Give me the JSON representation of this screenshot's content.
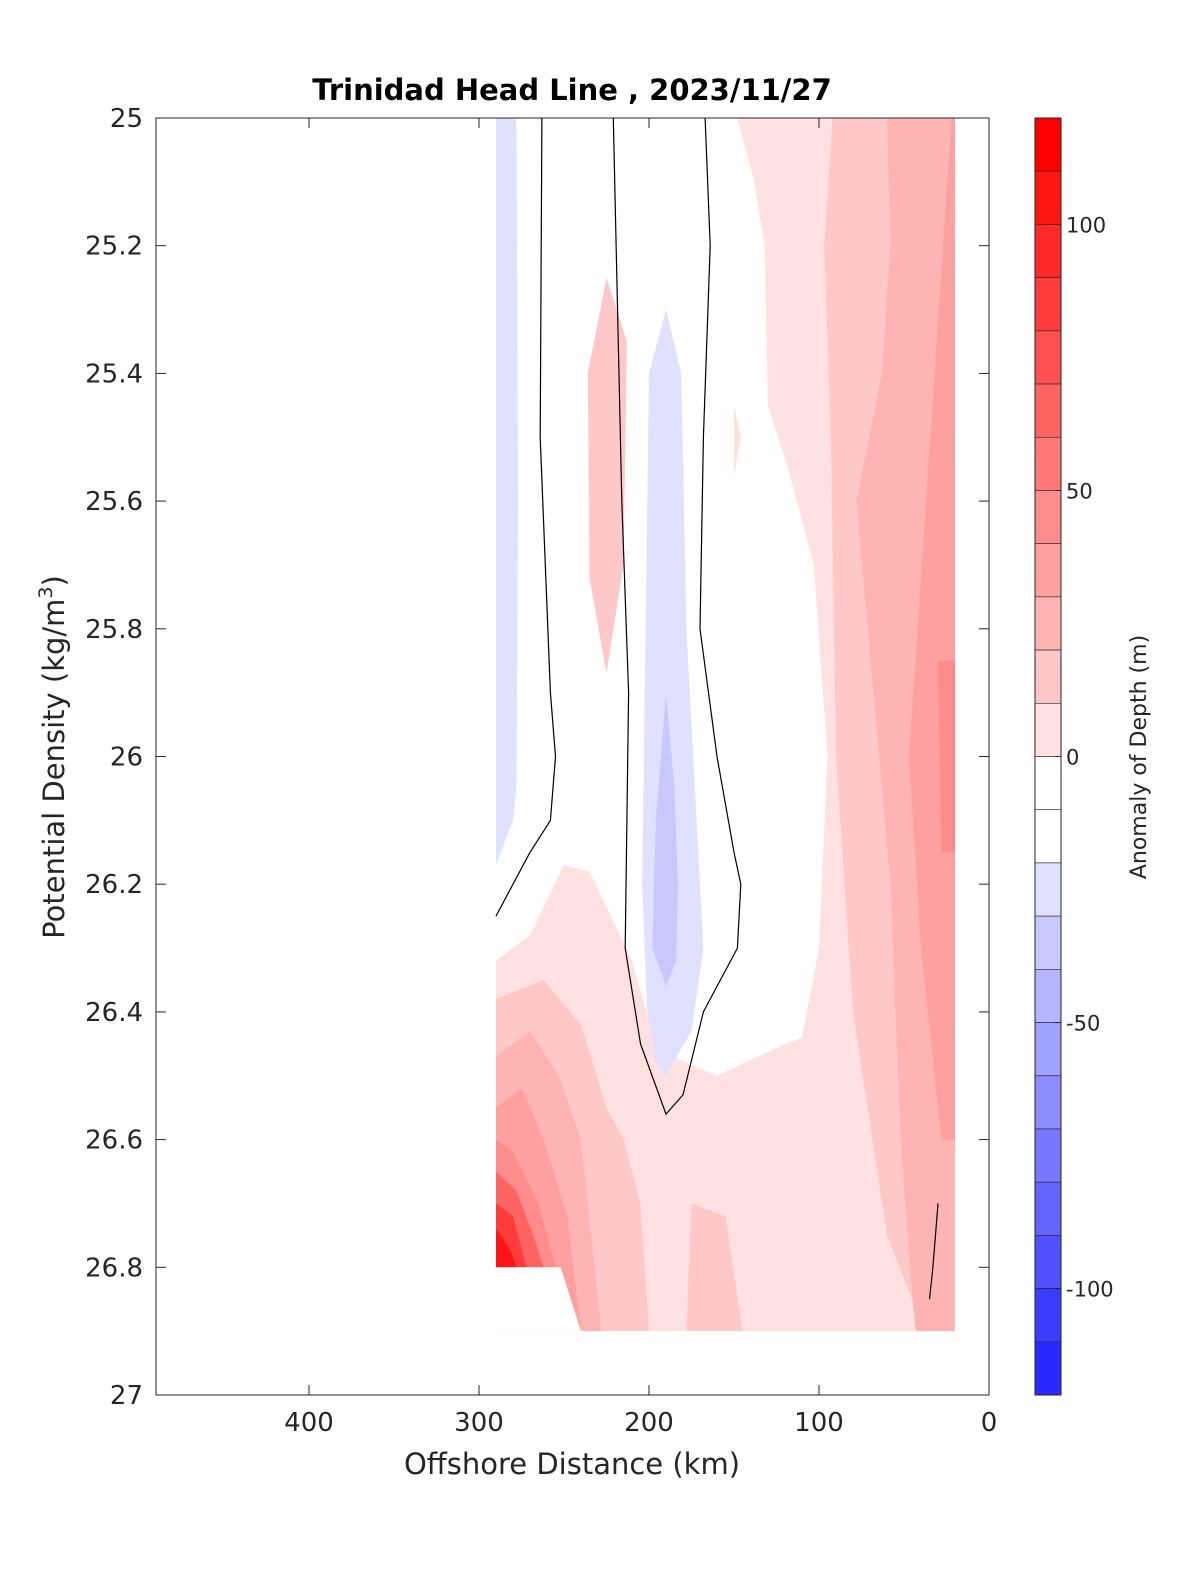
{
  "chart_data": {
    "type": "heatmap",
    "subtype": "filled-contour",
    "title": "Trinidad Head Line , 2023/11/27",
    "xlabel": "Offshore Distance (km)",
    "ylabel_main": "Potential Density (kg/m",
    "ylabel_sup": "3",
    "ylabel_end": ")",
    "colorbar_label": "Anomaly of Depth (m)",
    "xlim": [
      490,
      0
    ],
    "x_reversed": true,
    "ylim": [
      25,
      27
    ],
    "y_reversed": true,
    "x_ticks": [
      400,
      300,
      200,
      100,
      0
    ],
    "x_tick_labels": [
      "400",
      "300",
      "200",
      "100",
      "0"
    ],
    "y_ticks": [
      25,
      25.2,
      25.4,
      25.6,
      25.8,
      26,
      26.2,
      26.4,
      26.6,
      26.8,
      27
    ],
    "y_tick_labels": [
      "25",
      "25.2",
      "25.4",
      "25.6",
      "25.8",
      "26",
      "26.2",
      "26.4",
      "26.6",
      "26.8",
      "27"
    ],
    "colorbar": {
      "min": -120,
      "max": 120,
      "step": 10,
      "ticks": [
        100,
        50,
        0,
        -50,
        -100
      ],
      "tick_labels": [
        "100",
        "50",
        "0",
        "-50",
        "-100"
      ],
      "colors": [
        "#0000ff",
        "#1414ff",
        "#2828ff",
        "#3c3cff",
        "#5050ff",
        "#6464ff",
        "#7878ff",
        "#8c8cff",
        "#a0a0ff",
        "#b4b4ff",
        "#c8c8ff",
        "#e1e1ff",
        "#ffffff",
        "#ffffff",
        "#ffe1e1",
        "#ffc8c8",
        "#ffb4b4",
        "#ffa0a0",
        "#ff8c8c",
        "#ff7878",
        "#ff6464",
        "#ff5050",
        "#ff3c3c",
        "#ff2828",
        "#ff1414",
        "#ff0000"
      ]
    },
    "regions": [
      {
        "level": 10,
        "color": "#ffe1e1",
        "points": [
          [
            148,
            25
          ],
          [
            20,
            25
          ],
          [
            20,
            26.9
          ],
          [
            290,
            26.9
          ],
          [
            290,
            26.32
          ],
          [
            270,
            26.28
          ],
          [
            250,
            26.17
          ],
          [
            235,
            26.18
          ],
          [
            210,
            26.32
          ],
          [
            195,
            26.46
          ],
          [
            160,
            26.5
          ],
          [
            128,
            26.46
          ],
          [
            110,
            26.44
          ],
          [
            100,
            26.3
          ],
          [
            95,
            26
          ],
          [
            103,
            25.7
          ],
          [
            118,
            25.55
          ],
          [
            130,
            25.45
          ],
          [
            132,
            25.2
          ],
          [
            138,
            25.1
          ]
        ]
      },
      {
        "level": 20,
        "color": "#ffc8c8",
        "points": [
          [
            92,
            25
          ],
          [
            20,
            25
          ],
          [
            20,
            26.9
          ],
          [
            38,
            26.9
          ],
          [
            60,
            26.75
          ],
          [
            80,
            26.4
          ],
          [
            90,
            26
          ],
          [
            93,
            25.5
          ],
          [
            97,
            25.2
          ]
        ]
      },
      {
        "level": 20,
        "color": "#ffc8c8",
        "points": [
          [
            290,
            26.38
          ],
          [
            262,
            26.35
          ],
          [
            240,
            26.42
          ],
          [
            225,
            26.55
          ],
          [
            215,
            26.6
          ],
          [
            205,
            26.7
          ],
          [
            200,
            26.9
          ],
          [
            290,
            26.9
          ]
        ]
      },
      {
        "level": 20,
        "color": "#ffc8c8",
        "points": [
          [
            178,
            26.9
          ],
          [
            145,
            26.9
          ],
          [
            155,
            26.72
          ],
          [
            175,
            26.7
          ]
        ]
      },
      {
        "level": 20,
        "color": "#ffc8c8",
        "points": [
          [
            225,
            25.25
          ],
          [
            213,
            25.35
          ],
          [
            215,
            25.7
          ],
          [
            225,
            25.87
          ],
          [
            235,
            25.72
          ],
          [
            236,
            25.4
          ]
        ]
      },
      {
        "level": 30,
        "color": "#ffb4b4",
        "points": [
          [
            60,
            25
          ],
          [
            20,
            25
          ],
          [
            20,
            26.9
          ],
          [
            43,
            26.9
          ],
          [
            45,
            26.85
          ],
          [
            52,
            26.6
          ],
          [
            58,
            26.2
          ],
          [
            68,
            25.9
          ],
          [
            78,
            25.6
          ],
          [
            63,
            25.4
          ],
          [
            58,
            25.2
          ]
        ]
      },
      {
        "level": 30,
        "color": "#ffb4b4",
        "points": [
          [
            290,
            26.47
          ],
          [
            270,
            26.43
          ],
          [
            253,
            26.5
          ],
          [
            240,
            26.6
          ],
          [
            228,
            26.9
          ],
          [
            290,
            26.9
          ]
        ]
      },
      {
        "level": 40,
        "color": "#ffa0a0",
        "points": [
          [
            22,
            25
          ],
          [
            20,
            25
          ],
          [
            20,
            26.6
          ],
          [
            28,
            26.6
          ],
          [
            40,
            26.3
          ],
          [
            47,
            26
          ]
        ]
      },
      {
        "level": 40,
        "color": "#ffa0a0",
        "points": [
          [
            290,
            26.55
          ],
          [
            275,
            26.52
          ],
          [
            262,
            26.6
          ],
          [
            248,
            26.72
          ],
          [
            240,
            26.9
          ],
          [
            290,
            26.9
          ]
        ]
      },
      {
        "level": 50,
        "color": "#ff8c8c",
        "points": [
          [
            30,
            25.85
          ],
          [
            20,
            25.85
          ],
          [
            20,
            26.15
          ],
          [
            28,
            26.15
          ]
        ]
      },
      {
        "level": 50,
        "color": "#ff8c8c",
        "points": [
          [
            290,
            26.6
          ],
          [
            280,
            26.62
          ],
          [
            265,
            26.7
          ],
          [
            255,
            26.8
          ],
          [
            290,
            26.8
          ]
        ]
      },
      {
        "level": 60,
        "color": "#ff6464",
        "points": [
          [
            290,
            26.65
          ],
          [
            278,
            26.68
          ],
          [
            268,
            26.75
          ],
          [
            262,
            26.8
          ],
          [
            290,
            26.8
          ]
        ]
      },
      {
        "level": 80,
        "color": "#ff3c3c",
        "points": [
          [
            290,
            26.7
          ],
          [
            280,
            26.72
          ],
          [
            272,
            26.8
          ],
          [
            290,
            26.8
          ]
        ]
      },
      {
        "level": 100,
        "color": "#ff1414",
        "points": [
          [
            290,
            26.74
          ],
          [
            282,
            26.77
          ],
          [
            278,
            26.8
          ],
          [
            290,
            26.8
          ]
        ]
      },
      {
        "level": -10,
        "color": "#e1e1ff",
        "points": [
          [
            290,
            25
          ],
          [
            278,
            25
          ],
          [
            277,
            25.6
          ],
          [
            278,
            26.05
          ],
          [
            280,
            26.1
          ],
          [
            290,
            26.17
          ]
        ]
      },
      {
        "level": -10,
        "color": "#e1e1ff",
        "points": [
          [
            190,
            25.3
          ],
          [
            200,
            25.4
          ],
          [
            202,
            25.8
          ],
          [
            204,
            26.2
          ],
          [
            201,
            26.4
          ],
          [
            196,
            26.48
          ],
          [
            190,
            26.5
          ],
          [
            175,
            26.43
          ],
          [
            168,
            26.3
          ],
          [
            172,
            26.1
          ],
          [
            178,
            25.8
          ],
          [
            181,
            25.4
          ]
        ]
      },
      {
        "level": -20,
        "color": "#c8c8ff",
        "points": [
          [
            190,
            25.9
          ],
          [
            196,
            26.1
          ],
          [
            198,
            26.3
          ],
          [
            190,
            26.36
          ],
          [
            184,
            26.32
          ],
          [
            183,
            26.2
          ],
          [
            185,
            26.05
          ]
        ]
      },
      {
        "level": 15,
        "color": "#ffe1e1",
        "points": [
          [
            150,
            25.45
          ],
          [
            146,
            25.5
          ],
          [
            150,
            25.56
          ]
        ]
      }
    ],
    "white_fill": [
      {
        "points": [
          [
            490,
            25
          ],
          [
            290,
            25
          ],
          [
            290,
            26.9
          ],
          [
            240,
            26.9
          ],
          [
            252,
            26.8
          ],
          [
            490,
            26.8
          ]
        ]
      },
      {
        "points": [
          [
            490,
            26.9
          ],
          [
            0,
            26.9
          ],
          [
            0,
            27
          ],
          [
            490,
            27
          ]
        ]
      },
      {
        "points": [
          [
            20,
            25
          ],
          [
            0,
            25
          ],
          [
            0,
            26.9
          ],
          [
            20,
            26.9
          ]
        ]
      }
    ],
    "zero_contours": [
      {
        "points": [
          [
            263,
            25
          ],
          [
            264,
            25.5
          ],
          [
            258,
            25.9
          ],
          [
            255,
            26
          ],
          [
            258,
            26.1
          ],
          [
            270,
            26.15
          ],
          [
            290,
            26.25
          ]
        ]
      },
      {
        "points": [
          [
            221,
            25
          ],
          [
            216,
            25.6
          ],
          [
            212,
            25.9
          ],
          [
            214,
            26.3
          ],
          [
            205,
            26.45
          ],
          [
            190,
            26.56
          ],
          [
            180,
            26.53
          ],
          [
            168,
            26.4
          ],
          [
            148,
            26.3
          ],
          [
            146,
            26.2
          ],
          [
            150,
            26.15
          ],
          [
            160,
            26
          ],
          [
            170,
            25.8
          ],
          [
            168,
            25.5
          ],
          [
            164,
            25.2
          ],
          [
            167,
            25
          ]
        ]
      },
      {
        "points": [
          [
            30,
            26.7
          ],
          [
            33,
            26.8
          ],
          [
            35,
            26.85
          ]
        ]
      }
    ]
  }
}
